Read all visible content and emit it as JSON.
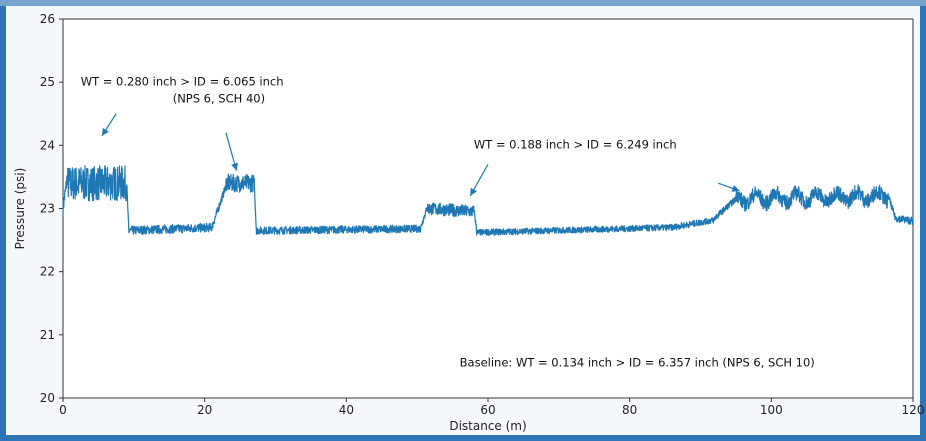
{
  "chart_data": {
    "type": "line",
    "xlabel": "Distance (m)",
    "ylabel": "Pressure (psi)",
    "xlim": [
      0,
      120
    ],
    "ylim": [
      20,
      26
    ],
    "xticks": [
      0,
      20,
      40,
      60,
      80,
      100,
      120
    ],
    "yticks": [
      20,
      21,
      22,
      23,
      24,
      25,
      26
    ],
    "xtick_labels": [
      "0",
      "20",
      "40",
      "60",
      "80",
      "100",
      "120"
    ],
    "ytick_labels": [
      "20",
      "21",
      "22",
      "23",
      "24",
      "25",
      "26"
    ],
    "grid": false,
    "legend": "none",
    "line_color": "#1f77b4",
    "segments": [
      {
        "x0": 0,
        "x1": 0.6,
        "start": 23.0,
        "end": 23.5,
        "noise": 0.12
      },
      {
        "x0": 0.6,
        "x1": 9,
        "start": 23.4,
        "end": 23.4,
        "noise": 0.28
      },
      {
        "x0": 9,
        "x1": 9.3,
        "start": 23.4,
        "end": 22.6,
        "noise": 0.05
      },
      {
        "x0": 9.3,
        "x1": 21,
        "start": 22.65,
        "end": 22.7,
        "noise": 0.07
      },
      {
        "x0": 21,
        "x1": 23,
        "start": 22.7,
        "end": 23.35,
        "noise": 0.06
      },
      {
        "x0": 23,
        "x1": 27,
        "start": 23.4,
        "end": 23.4,
        "noise": 0.14
      },
      {
        "x0": 27,
        "x1": 27.3,
        "start": 23.4,
        "end": 22.65,
        "noise": 0.05
      },
      {
        "x0": 27.3,
        "x1": 50.5,
        "start": 22.65,
        "end": 22.68,
        "noise": 0.06
      },
      {
        "x0": 50.5,
        "x1": 51.5,
        "start": 22.7,
        "end": 23.05,
        "noise": 0.05
      },
      {
        "x0": 51.5,
        "x1": 58,
        "start": 23.0,
        "end": 22.95,
        "noise": 0.1
      },
      {
        "x0": 58,
        "x1": 58.4,
        "start": 23.0,
        "end": 22.65,
        "noise": 0.05
      },
      {
        "x0": 58.4,
        "x1": 86,
        "start": 22.62,
        "end": 22.7,
        "noise": 0.05
      },
      {
        "x0": 86,
        "x1": 92,
        "start": 22.7,
        "end": 22.82,
        "noise": 0.05
      },
      {
        "x0": 92,
        "x1": 95,
        "start": 22.85,
        "end": 23.15,
        "noise": 0.05
      },
      {
        "x0": 95,
        "x1": 116.5,
        "start": 23.15,
        "end": 23.2,
        "noise": 0.12,
        "wave": 0.08
      },
      {
        "x0": 116.5,
        "x1": 117.5,
        "start": 23.2,
        "end": 22.85,
        "noise": 0.05
      },
      {
        "x0": 117.5,
        "x1": 120,
        "start": 22.85,
        "end": 22.8,
        "noise": 0.06
      }
    ],
    "annotations": [
      {
        "lines": [
          "WT = 0.280 inch > ID =   6.065 inch",
          "(NPS 6, SCH 40)"
        ],
        "x": 2.5,
        "y": 24.95,
        "arrows": [
          {
            "from": [
              7.5,
              24.5
            ],
            "to": [
              5.5,
              24.15
            ]
          },
          {
            "from": [
              23,
              24.2
            ],
            "to": [
              24.5,
              23.6
            ]
          }
        ]
      },
      {
        "lines": [
          "WT = 0.188 inch > ID = 6.249 inch"
        ],
        "x": 58,
        "y": 23.95,
        "arrows": [
          {
            "from": [
              60,
              23.7
            ],
            "to": [
              57.5,
              23.2
            ]
          },
          {
            "from": [
              92.5,
              23.4
            ],
            "to": [
              95.5,
              23.28
            ]
          }
        ]
      },
      {
        "lines": [
          "Baseline: WT = 0.134 inch > ID =   6.357 inch (NPS 6, SCH 10)"
        ],
        "x": 56,
        "y": 20.5,
        "arrows": []
      }
    ]
  }
}
